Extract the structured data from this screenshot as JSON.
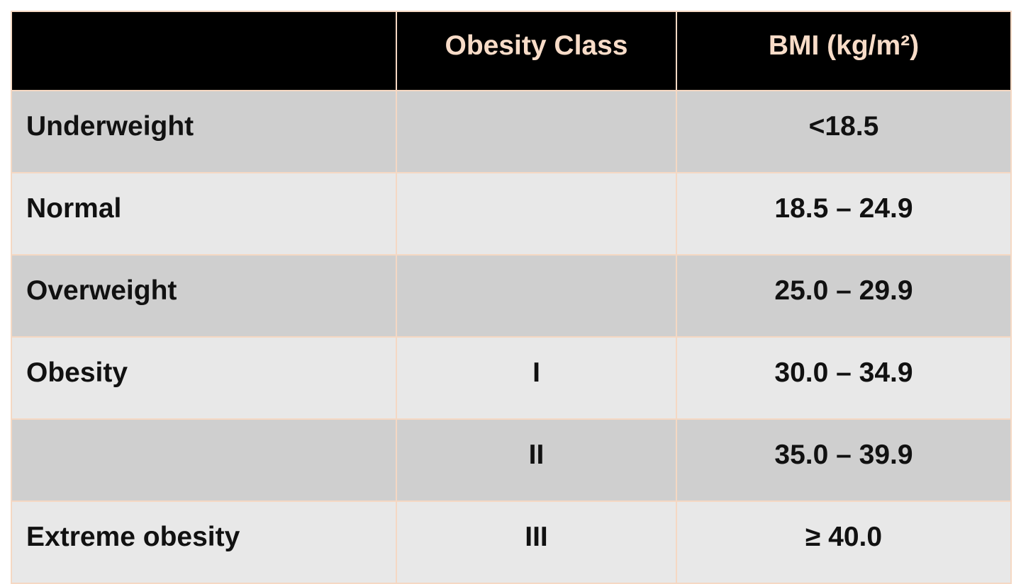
{
  "table": {
    "header": [
      "Obesity Class",
      "BMI (kg/m²)"
    ],
    "rows": [
      {
        "category": "Underweight",
        "bmi": "<18.5"
      },
      {
        "category": "Normal",
        "bmi": "18.5 – 24.9"
      },
      {
        "category": "Overweight",
        "bmi": "25.0 – 29.9"
      },
      {
        "category": "Obesity",
        "class": "I",
        "bmi": "30.0 – 34.9"
      },
      {
        "class": "II",
        "bmi": "35.0 – 39.9"
      },
      {
        "category": "Extreme obesity",
        "class": "III",
        "bmi": "≥ 40.0"
      }
    ]
  }
}
